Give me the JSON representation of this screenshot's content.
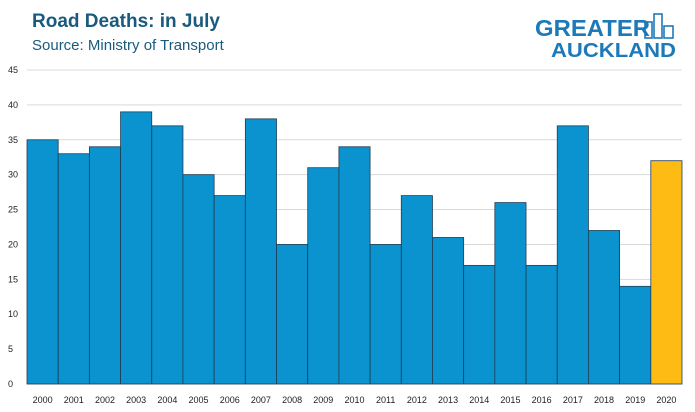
{
  "chart_data": {
    "type": "bar",
    "title": "Road Deaths: in July",
    "subtitle": "Source: Ministry of Transport",
    "categories": [
      "2000",
      "2001",
      "2002",
      "2003",
      "2004",
      "2005",
      "2006",
      "2007",
      "2008",
      "2009",
      "2010",
      "2011",
      "2012",
      "2013",
      "2014",
      "2015",
      "2016",
      "2017",
      "2018",
      "2019",
      "2020"
    ],
    "values": [
      35,
      33,
      34,
      39,
      37,
      30,
      27,
      38,
      20,
      31,
      34,
      20,
      27,
      21,
      17,
      26,
      17,
      37,
      22,
      14,
      32
    ],
    "yticks": [
      0,
      5,
      10,
      15,
      20,
      25,
      30,
      35,
      40,
      45
    ],
    "ylim": [
      0,
      45
    ],
    "grid": true,
    "legend": "none",
    "colors": {
      "default": "#0b93d0",
      "highlight": "#fdbb13",
      "highlight_category": "2020"
    }
  },
  "logo": {
    "line1": "GREATER",
    "line2": "AUCKLAND",
    "color": "#1d79b8",
    "icon": "city-skyline-icon"
  }
}
